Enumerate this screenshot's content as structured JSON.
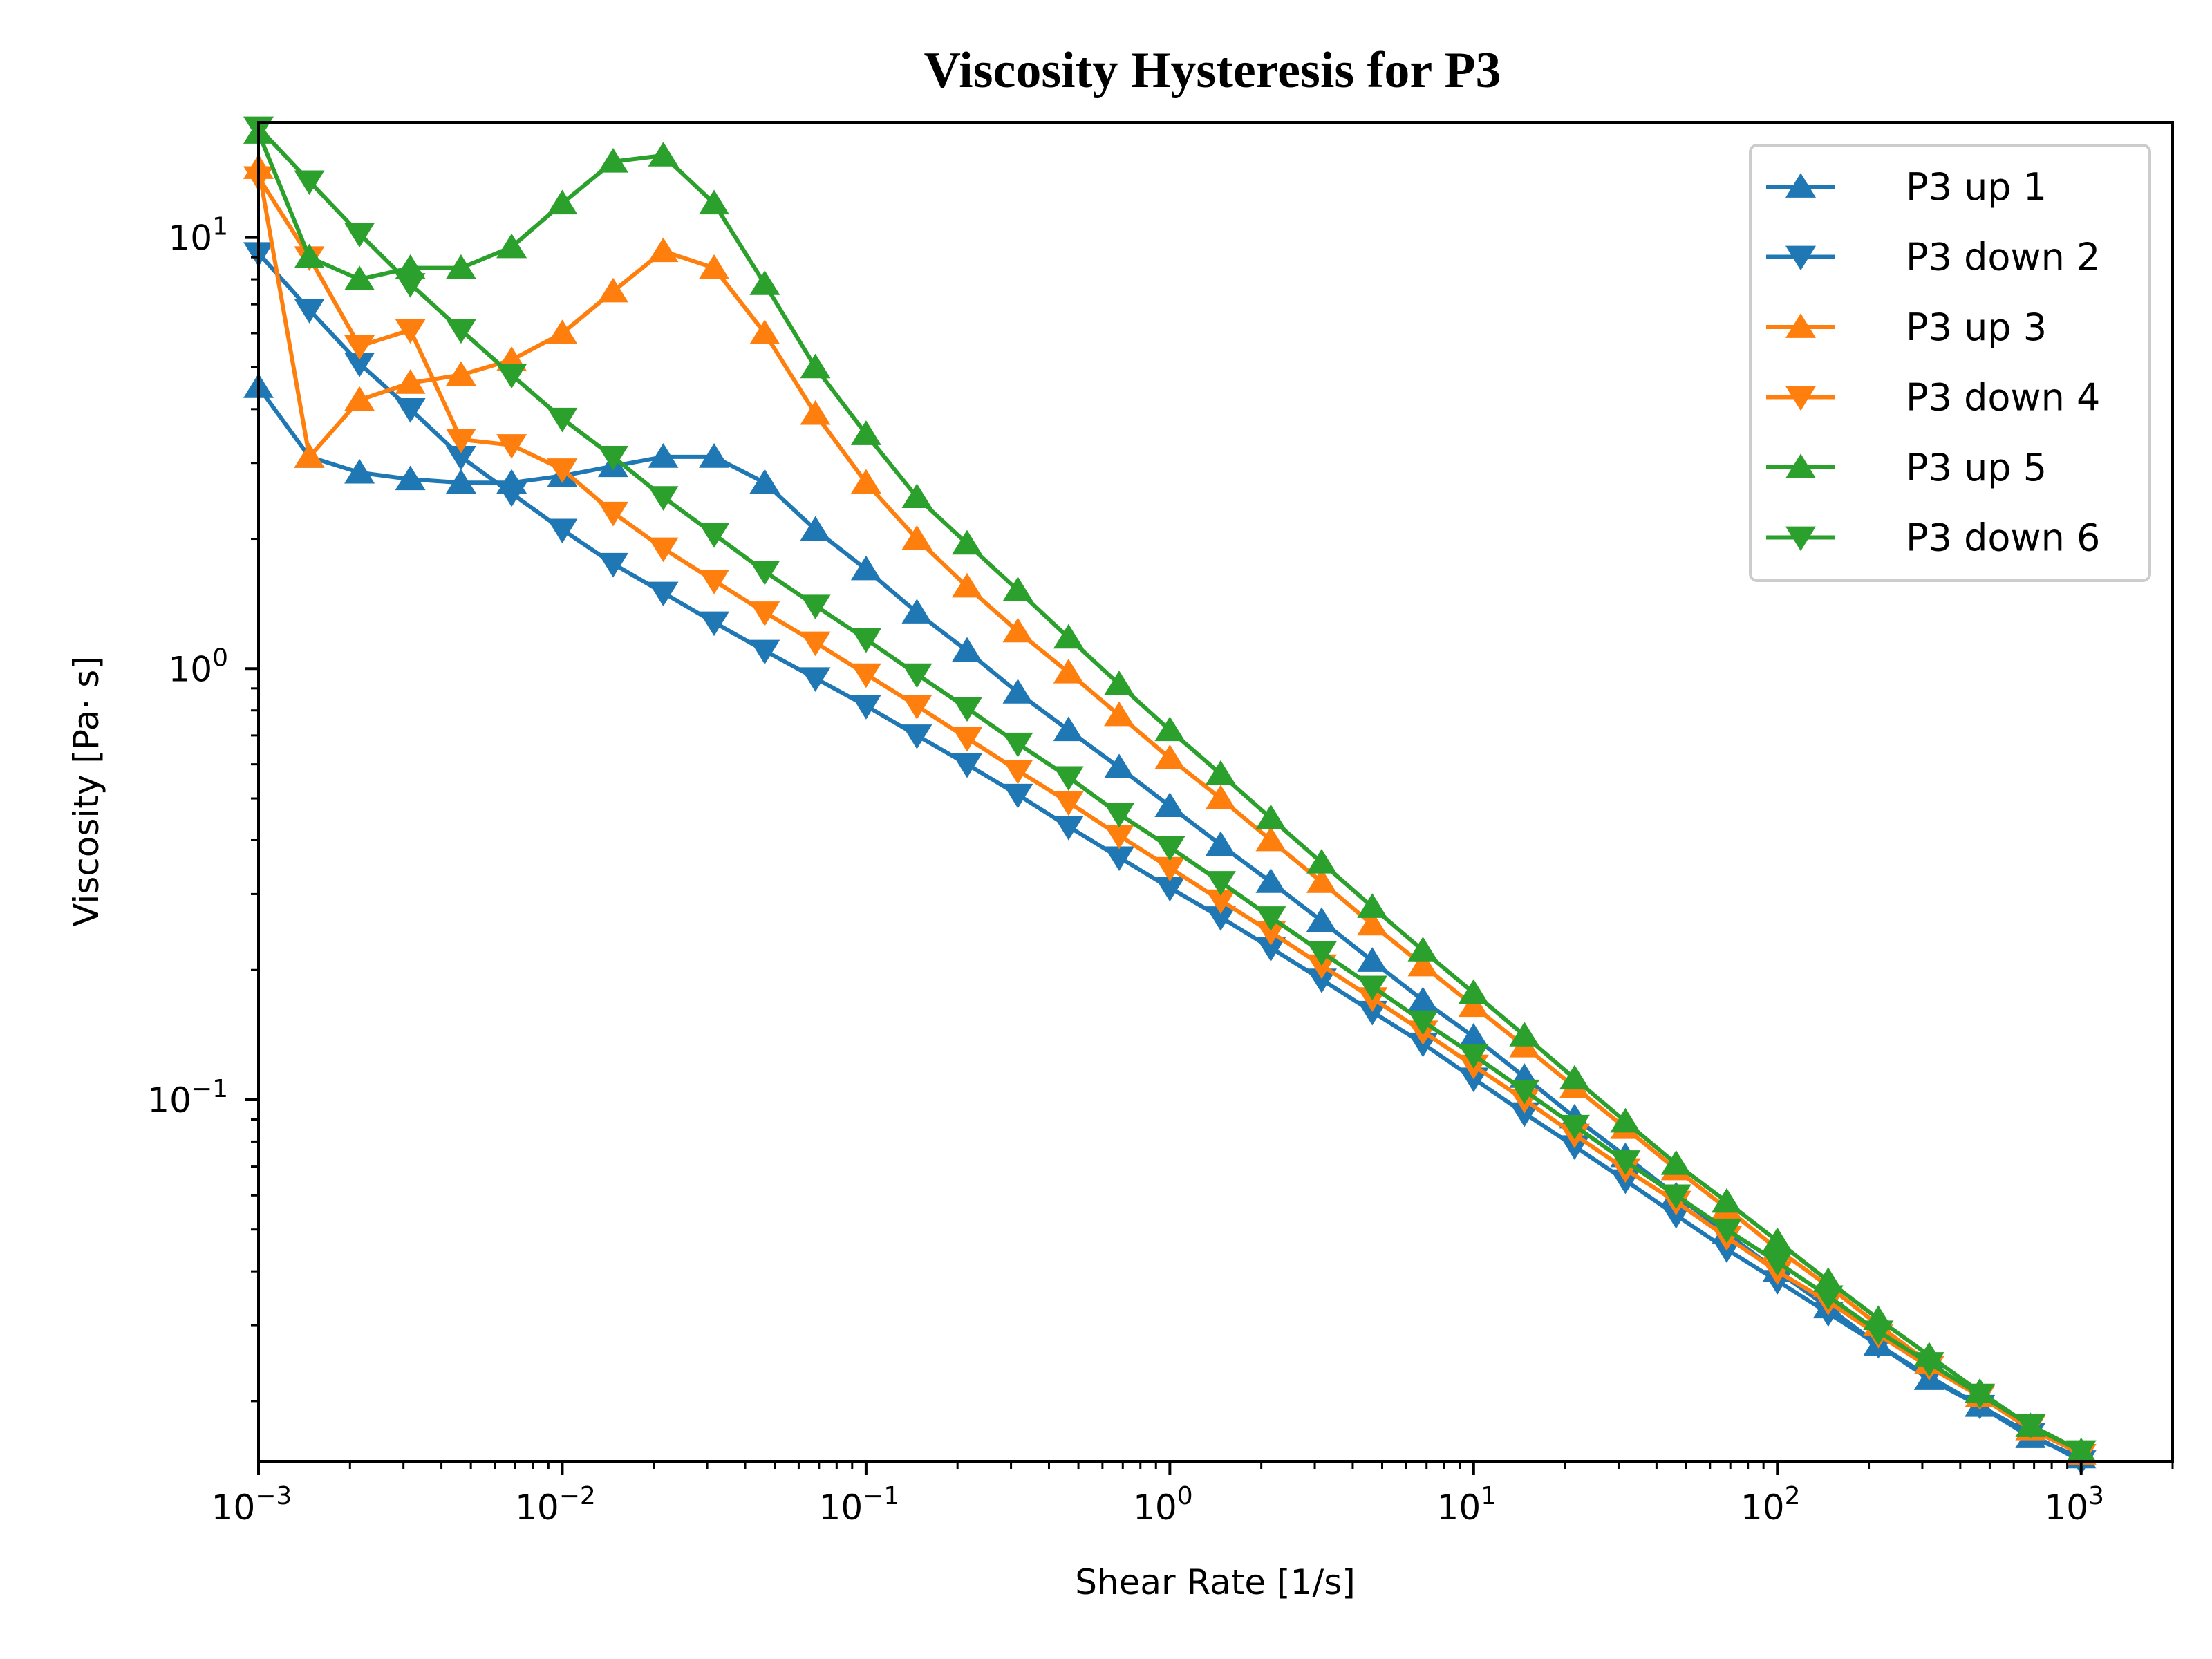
{
  "chart_data": {
    "type": "line",
    "title": "Viscosity Hysteresis for P3",
    "xlabel": "Shear Rate [1/s]",
    "ylabel": "Viscosity [Pa· s]",
    "xscale": "log",
    "yscale": "log",
    "xlim": [
      0.001,
      2000
    ],
    "ylim": [
      0.0145,
      18.5
    ],
    "x_ticks": [
      {
        "value": 0.001,
        "base": "10",
        "exp": "−3"
      },
      {
        "value": 0.01,
        "base": "10",
        "exp": "−2"
      },
      {
        "value": 0.1,
        "base": "10",
        "exp": "−1"
      },
      {
        "value": 1,
        "base": "10",
        "exp": "0"
      },
      {
        "value": 10,
        "base": "10",
        "exp": "1"
      },
      {
        "value": 100,
        "base": "10",
        "exp": "2"
      },
      {
        "value": 1000,
        "base": "10",
        "exp": "3"
      }
    ],
    "y_ticks": [
      {
        "value": 0.1,
        "base": "10",
        "exp": "−1"
      },
      {
        "value": 1,
        "base": "10",
        "exp": "0"
      },
      {
        "value": 10,
        "base": "10",
        "exp": "1"
      }
    ],
    "grid": false,
    "legend_position": "top-right",
    "x": [
      0.001,
      0.00147,
      0.00215,
      0.00316,
      0.00464,
      0.00681,
      0.01,
      0.0147,
      0.0215,
      0.0316,
      0.0464,
      0.0681,
      0.1,
      0.147,
      0.215,
      0.316,
      0.464,
      0.681,
      1,
      1.47,
      2.15,
      3.16,
      4.64,
      6.81,
      10,
      14.7,
      21.5,
      31.6,
      46.4,
      68.1,
      100,
      147,
      215,
      316,
      464,
      681,
      1000
    ],
    "series": [
      {
        "name": "P3 up 1",
        "color": "#1f77b4",
        "marker": "triangle-up",
        "values": [
          4.5,
          3.1,
          2.85,
          2.75,
          2.7,
          2.7,
          2.8,
          2.95,
          3.1,
          3.1,
          2.7,
          2.1,
          1.7,
          1.35,
          1.1,
          0.88,
          0.72,
          0.59,
          0.48,
          0.39,
          0.32,
          0.26,
          0.21,
          0.17,
          0.14,
          0.113,
          0.091,
          0.074,
          0.06,
          0.049,
          0.04,
          0.033,
          0.027,
          0.0225,
          0.0195,
          0.0165,
          0.0148
        ]
      },
      {
        "name": "P3 down 2",
        "color": "#1f77b4",
        "marker": "triangle-down",
        "values": [
          9.2,
          6.8,
          5.1,
          4.0,
          3.1,
          2.55,
          2.1,
          1.75,
          1.5,
          1.28,
          1.1,
          0.95,
          0.82,
          0.7,
          0.6,
          0.51,
          0.43,
          0.365,
          0.31,
          0.265,
          0.225,
          0.19,
          0.16,
          0.135,
          0.112,
          0.093,
          0.078,
          0.065,
          0.054,
          0.045,
          0.038,
          0.032,
          0.027,
          0.0228,
          0.0195,
          0.0168,
          0.0145
        ]
      },
      {
        "name": "P3 up 3",
        "color": "#ff7f0e",
        "marker": "triangle-up",
        "values": [
          14.5,
          3.1,
          4.2,
          4.6,
          4.8,
          5.2,
          6.0,
          7.5,
          9.3,
          8.5,
          6.0,
          3.9,
          2.7,
          2.0,
          1.55,
          1.22,
          0.98,
          0.78,
          0.62,
          0.5,
          0.4,
          0.32,
          0.255,
          0.205,
          0.165,
          0.133,
          0.107,
          0.086,
          0.069,
          0.056,
          0.045,
          0.037,
          0.03,
          0.0245,
          0.0205,
          0.0172,
          0.0151
        ]
      },
      {
        "name": "P3 down 4",
        "color": "#ff7f0e",
        "marker": "triangle-down",
        "values": [
          13.8,
          9.0,
          5.6,
          6.1,
          3.4,
          3.3,
          2.9,
          2.3,
          1.9,
          1.6,
          1.35,
          1.15,
          0.97,
          0.82,
          0.69,
          0.58,
          0.49,
          0.41,
          0.345,
          0.29,
          0.245,
          0.205,
          0.172,
          0.144,
          0.12,
          0.1,
          0.083,
          0.069,
          0.058,
          0.048,
          0.04,
          0.034,
          0.0285,
          0.024,
          0.0205,
          0.0175,
          0.015
        ]
      },
      {
        "name": "P3 up 5",
        "color": "#2ca02c",
        "marker": "triangle-up",
        "values": [
          17.5,
          9.0,
          8.0,
          8.5,
          8.5,
          9.5,
          12.0,
          15.0,
          15.5,
          12.0,
          7.8,
          5.0,
          3.5,
          2.5,
          1.95,
          1.52,
          1.18,
          0.92,
          0.72,
          0.57,
          0.45,
          0.355,
          0.28,
          0.222,
          0.177,
          0.141,
          0.112,
          0.089,
          0.071,
          0.058,
          0.047,
          0.038,
          0.031,
          0.0255,
          0.021,
          0.0175,
          0.0153
        ]
      },
      {
        "name": "P3 down 6",
        "color": "#2ca02c",
        "marker": "triangle-down",
        "values": [
          18.0,
          13.5,
          10.2,
          7.8,
          6.1,
          4.8,
          3.8,
          3.1,
          2.5,
          2.05,
          1.68,
          1.4,
          1.17,
          0.97,
          0.81,
          0.67,
          0.56,
          0.46,
          0.385,
          0.32,
          0.265,
          0.22,
          0.183,
          0.152,
          0.127,
          0.105,
          0.087,
          0.072,
          0.06,
          0.05,
          0.042,
          0.035,
          0.029,
          0.0245,
          0.0207,
          0.0176,
          0.0153
        ]
      }
    ]
  }
}
